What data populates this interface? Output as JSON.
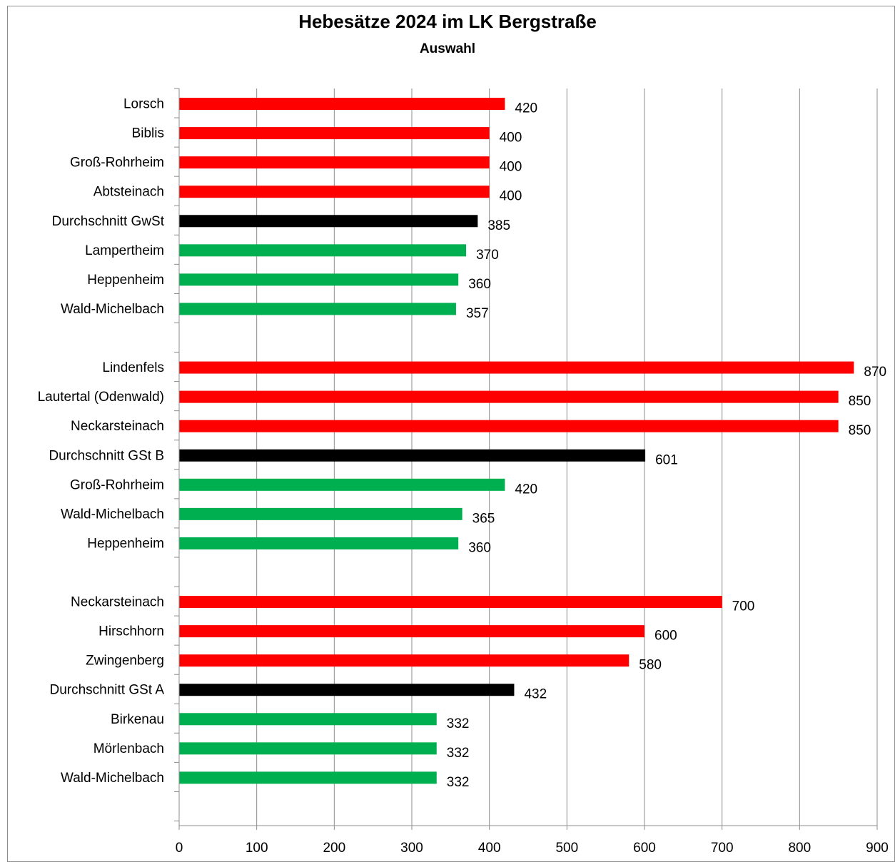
{
  "chart_data": {
    "type": "bar",
    "orientation": "horizontal",
    "title": "Hebesätze 2024 im LK Bergstraße",
    "subtitle": "Auswahl",
    "xlabel": "",
    "ylabel": "",
    "xlim": [
      0,
      900
    ],
    "xticks": [
      0,
      100,
      200,
      300,
      400,
      500,
      600,
      700,
      800,
      900
    ],
    "grid": true,
    "legend": "none",
    "colors": {
      "high": "#ff0000",
      "average": "#000000",
      "low": "#00b050"
    },
    "groups": [
      {
        "bars": [
          {
            "label": "Lorsch",
            "value": 420,
            "kind": "high"
          },
          {
            "label": "Biblis",
            "value": 400,
            "kind": "high"
          },
          {
            "label": "Groß-Rohrheim",
            "value": 400,
            "kind": "high"
          },
          {
            "label": "Abtsteinach",
            "value": 400,
            "kind": "high"
          },
          {
            "label": "Durchschnitt GwSt",
            "value": 385,
            "kind": "average"
          },
          {
            "label": "Lampertheim",
            "value": 370,
            "kind": "low"
          },
          {
            "label": "Heppenheim",
            "value": 360,
            "kind": "low"
          },
          {
            "label": "Wald-Michelbach",
            "value": 357,
            "kind": "low"
          }
        ]
      },
      {
        "bars": [
          {
            "label": "Lindenfels",
            "value": 870,
            "kind": "high"
          },
          {
            "label": "Lautertal (Odenwald)",
            "value": 850,
            "kind": "high"
          },
          {
            "label": "Neckarsteinach",
            "value": 850,
            "kind": "high"
          },
          {
            "label": "Durchschnitt GSt B",
            "value": 601,
            "kind": "average"
          },
          {
            "label": "Groß-Rohrheim",
            "value": 420,
            "kind": "low"
          },
          {
            "label": "Wald-Michelbach",
            "value": 365,
            "kind": "low"
          },
          {
            "label": "Heppenheim",
            "value": 360,
            "kind": "low"
          }
        ]
      },
      {
        "bars": [
          {
            "label": "Neckarsteinach",
            "value": 700,
            "kind": "high"
          },
          {
            "label": "Hirschhorn",
            "value": 600,
            "kind": "high"
          },
          {
            "label": "Zwingenberg",
            "value": 580,
            "kind": "high"
          },
          {
            "label": "Durchschnitt GSt A",
            "value": 432,
            "kind": "average"
          },
          {
            "label": "Birkenau",
            "value": 332,
            "kind": "low"
          },
          {
            "label": "Mörlenbach",
            "value": 332,
            "kind": "low"
          },
          {
            "label": "Wald-Michelbach",
            "value": 332,
            "kind": "low"
          }
        ]
      }
    ]
  }
}
